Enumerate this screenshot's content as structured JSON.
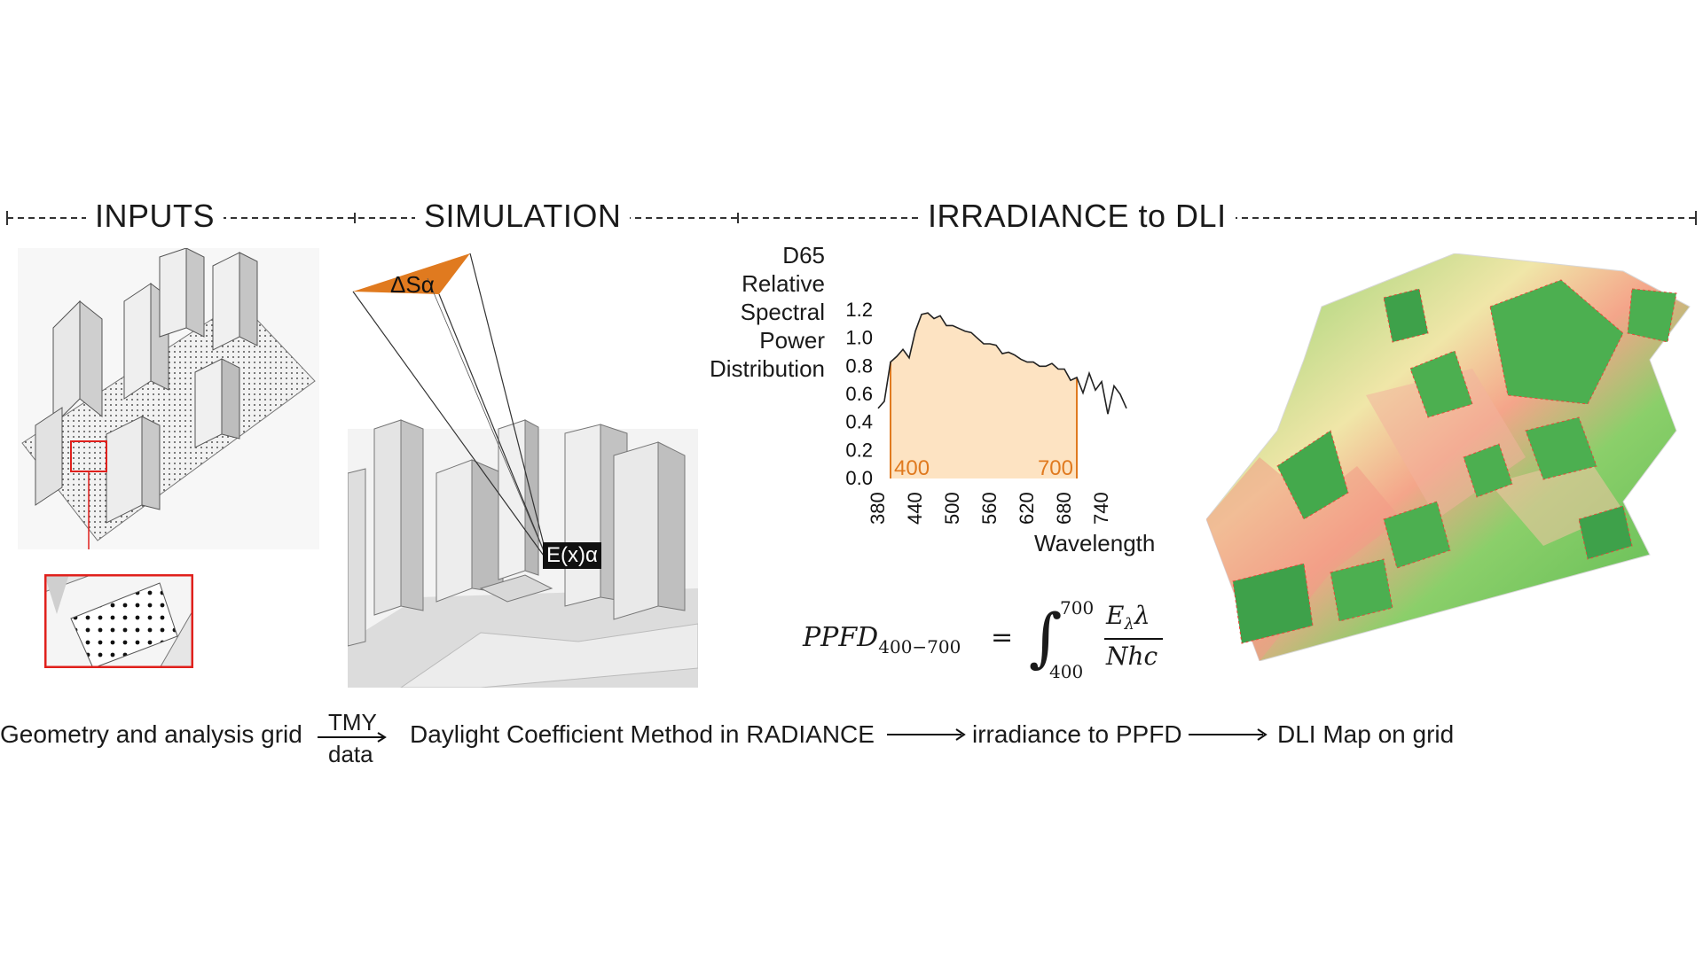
{
  "sections": {
    "inputs": "INPUTS",
    "simulation": "SIMULATION",
    "irradiance": "IRRADIANCE to DLI"
  },
  "simulation_labels": {
    "sky_patch": "ΔSα",
    "sensor": "E(x)α"
  },
  "chart_data": {
    "type": "line",
    "ylabel_lines": [
      "D65",
      "Relative",
      "Spectral",
      "Power",
      "Distribution"
    ],
    "xlabel": "Wavelength",
    "y_ticks": [
      "1.2",
      "1.0",
      "0.8",
      "0.6",
      "0.4",
      "0.2",
      "0.0"
    ],
    "x_ticks": [
      "380",
      "440",
      "500",
      "560",
      "620",
      "680",
      "740"
    ],
    "ylim": [
      0,
      1.2
    ],
    "xlim": [
      380,
      780
    ],
    "band_labels": [
      "400",
      "700"
    ],
    "x": [
      380,
      390,
      400,
      410,
      420,
      430,
      440,
      450,
      460,
      470,
      480,
      490,
      500,
      510,
      520,
      530,
      540,
      550,
      560,
      570,
      580,
      590,
      600,
      610,
      620,
      630,
      640,
      650,
      660,
      670,
      680,
      690,
      700,
      710,
      720,
      730,
      740,
      750,
      760,
      770,
      780
    ],
    "values": [
      0.5,
      0.55,
      0.83,
      0.87,
      0.92,
      0.86,
      1.05,
      1.17,
      1.18,
      1.14,
      1.16,
      1.09,
      1.09,
      1.07,
      1.05,
      1.04,
      1.0,
      0.96,
      0.96,
      0.95,
      0.89,
      0.9,
      0.88,
      0.85,
      0.83,
      0.83,
      0.8,
      0.8,
      0.82,
      0.78,
      0.78,
      0.7,
      0.72,
      0.61,
      0.75,
      0.63,
      0.69,
      0.46,
      0.66,
      0.6,
      0.5
    ]
  },
  "formula": {
    "lhs": "PPFD",
    "lhs_sub": "400−700",
    "equals": "=",
    "upper": "700",
    "lower": "400",
    "numerator": "E",
    "numerator_sub": "λ",
    "numerator_tail": "λ",
    "denominator": "Nhc"
  },
  "flow": {
    "step1": "Geometry and analysis grid",
    "arrow1_top": "TMY",
    "arrow1_bottom": "data",
    "step2": "Daylight Coefficient Method in RADIANCE",
    "step3": "irradiance to PPFD",
    "step4": "DLI Map on grid"
  },
  "colors": {
    "accent": "#e07a1f",
    "band_fill": "#fde3c2",
    "inset_border": "#e0201c",
    "map_green": "#4caf50",
    "map_red": "#e64a3c"
  }
}
